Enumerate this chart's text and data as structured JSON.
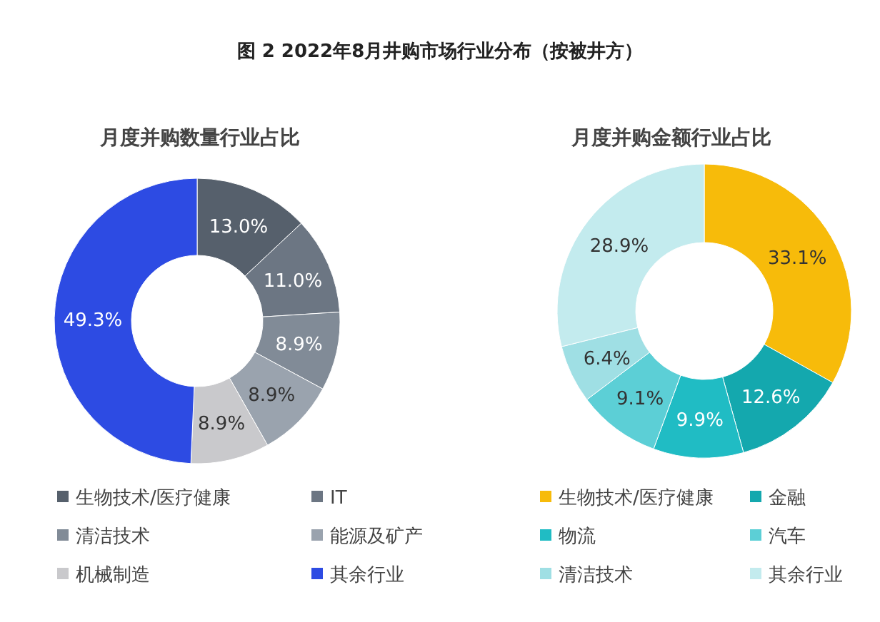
{
  "chart_data": [
    {
      "type": "donut",
      "title": "图 2  2022年8月井购市场行业分布（按被井方）",
      "subtitle": "月度并购数量行业占比",
      "categories": [
        "生物技术/医疗健康",
        "IT",
        "清洁技术",
        "能源及矿产",
        "机械制造",
        "其余行业"
      ],
      "values": [
        13.0,
        11.0,
        8.9,
        8.9,
        8.9,
        49.3
      ],
      "colors": [
        "#56606c",
        "#6c7683",
        "#818b97",
        "#9aa3ae",
        "#c9c9cc",
        "#2d4be3"
      ],
      "value_labels": [
        "13.0%",
        "11.0%",
        "8.9%",
        "8.9%",
        "8.9%",
        "49.3%"
      ],
      "legend": "bottom"
    },
    {
      "type": "donut",
      "subtitle": "月度并购金额行业占比",
      "categories": [
        "生物技术/医疗健康",
        "金融",
        "物流",
        "汽车",
        "清洁技术",
        "其余行业"
      ],
      "values": [
        33.1,
        12.6,
        9.9,
        9.1,
        6.4,
        28.9
      ],
      "colors": [
        "#f7bb0a",
        "#14a8ae",
        "#20bcc4",
        "#5ccfd6",
        "#9fdfe4",
        "#c3ebee"
      ],
      "value_labels": [
        "33.1%",
        "12.6%",
        "9.9%",
        "9.1%",
        "6.4%",
        "28.9%"
      ],
      "legend": "bottom"
    }
  ]
}
